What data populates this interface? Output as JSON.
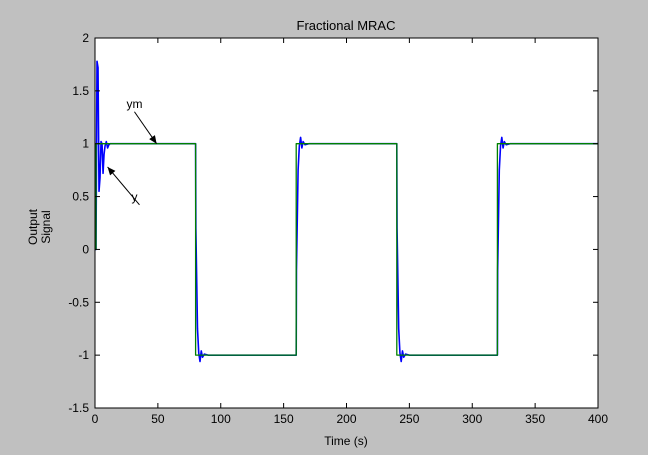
{
  "chart_data": {
    "type": "line",
    "title": "Fractional MRAC",
    "xlabel": "Time (s)",
    "ylabel": [
      "Output",
      "Signal"
    ],
    "xlim": [
      0,
      400
    ],
    "ylim": [
      -1.5,
      2
    ],
    "xticks": [
      0,
      50,
      100,
      150,
      200,
      250,
      300,
      350,
      400
    ],
    "xtick_labels": [
      "0",
      "50",
      "100",
      "150",
      "200",
      "250",
      "300",
      "350",
      "400"
    ],
    "yticks": [
      -1.5,
      -1,
      -0.5,
      0,
      0.5,
      1,
      1.5,
      2
    ],
    "ytick_labels": [
      "-1.5",
      "-1",
      "-0.5",
      "0",
      "0.5",
      "1",
      "1.5",
      "2"
    ],
    "grid": false,
    "colors": {
      "figure_bg": "#c0c0c0",
      "axes_bg": "#ffffff",
      "ym": "#008000",
      "y": "#0000ff"
    },
    "series": [
      {
        "key": "ym",
        "x": [
          0,
          0.8,
          0.8,
          80,
          80,
          160,
          160,
          240,
          240,
          320,
          320,
          400
        ],
        "y": [
          0,
          0,
          1,
          1,
          -1,
          -1,
          1,
          1,
          -1,
          -1,
          1,
          1
        ]
      },
      {
        "key": "y",
        "x": [
          0,
          0.8,
          1.6,
          2.4,
          3.2,
          4.0,
          4.8,
          5.6,
          6.4,
          7.2,
          8.0,
          9.0,
          10.0,
          11.0,
          12.0,
          14.0,
          80,
          80.2,
          81.5,
          82.5,
          83.5,
          84.5,
          85.5,
          87,
          90,
          160,
          160.2,
          161.5,
          162.5,
          163.5,
          164.5,
          165.5,
          167,
          170,
          240,
          240.2,
          241.5,
          242.5,
          243.5,
          244.5,
          245.5,
          247,
          250,
          320,
          320.2,
          321.5,
          322.5,
          323.5,
          324.5,
          325.5,
          327,
          330,
          400
        ],
        "y": [
          0,
          0,
          1.78,
          1.72,
          0.55,
          0.68,
          1.02,
          1.0,
          0.72,
          0.9,
          0.98,
          1.02,
          0.96,
          0.99,
          1.0,
          1.0,
          1.0,
          0.2,
          -0.75,
          -0.98,
          -1.06,
          -0.96,
          -1.02,
          -0.99,
          -1.0,
          -1.0,
          -0.2,
          0.75,
          0.98,
          1.06,
          0.96,
          1.02,
          0.99,
          1.0,
          1.0,
          0.2,
          -0.75,
          -0.98,
          -1.06,
          -0.96,
          -1.02,
          -0.99,
          -1.0,
          -1.0,
          -0.2,
          0.75,
          0.98,
          1.06,
          0.96,
          1.02,
          0.99,
          1.0,
          1.0
        ]
      }
    ],
    "annotations": [
      {
        "text": "ym",
        "x": 25,
        "y": 1.34,
        "arrow_to_x": 49,
        "arrow_to_y": 1.0
      },
      {
        "text": "y",
        "x": 29,
        "y": 0.46,
        "arrow_to_x": 10,
        "arrow_to_y": 0.78
      }
    ]
  }
}
